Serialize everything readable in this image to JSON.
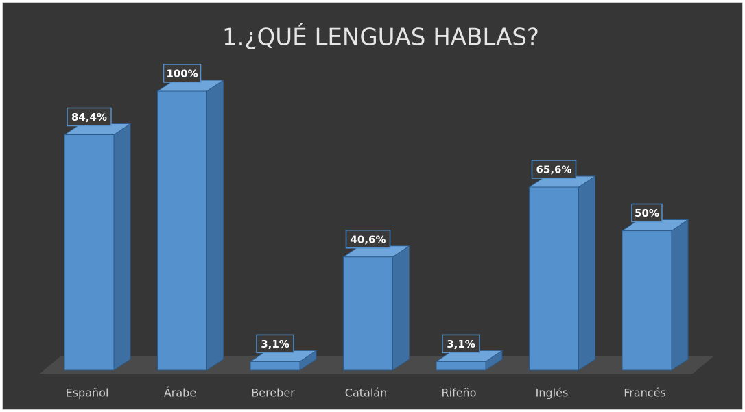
{
  "chart_data": {
    "type": "bar3d",
    "title": "1.¿QUÉ LENGUAS HABLAS?",
    "categories": [
      "Español",
      "Árabe",
      "Bereber",
      "Catalán",
      "Rifeño",
      "Inglés",
      "Francés"
    ],
    "values": [
      84.4,
      100,
      3.1,
      40.6,
      3.1,
      65.6,
      50
    ],
    "value_labels": [
      "84,4%",
      "100%",
      "3,1%",
      "40,6%",
      "3,1%",
      "65,6%",
      "50%"
    ],
    "color": "#5591cd"
  }
}
